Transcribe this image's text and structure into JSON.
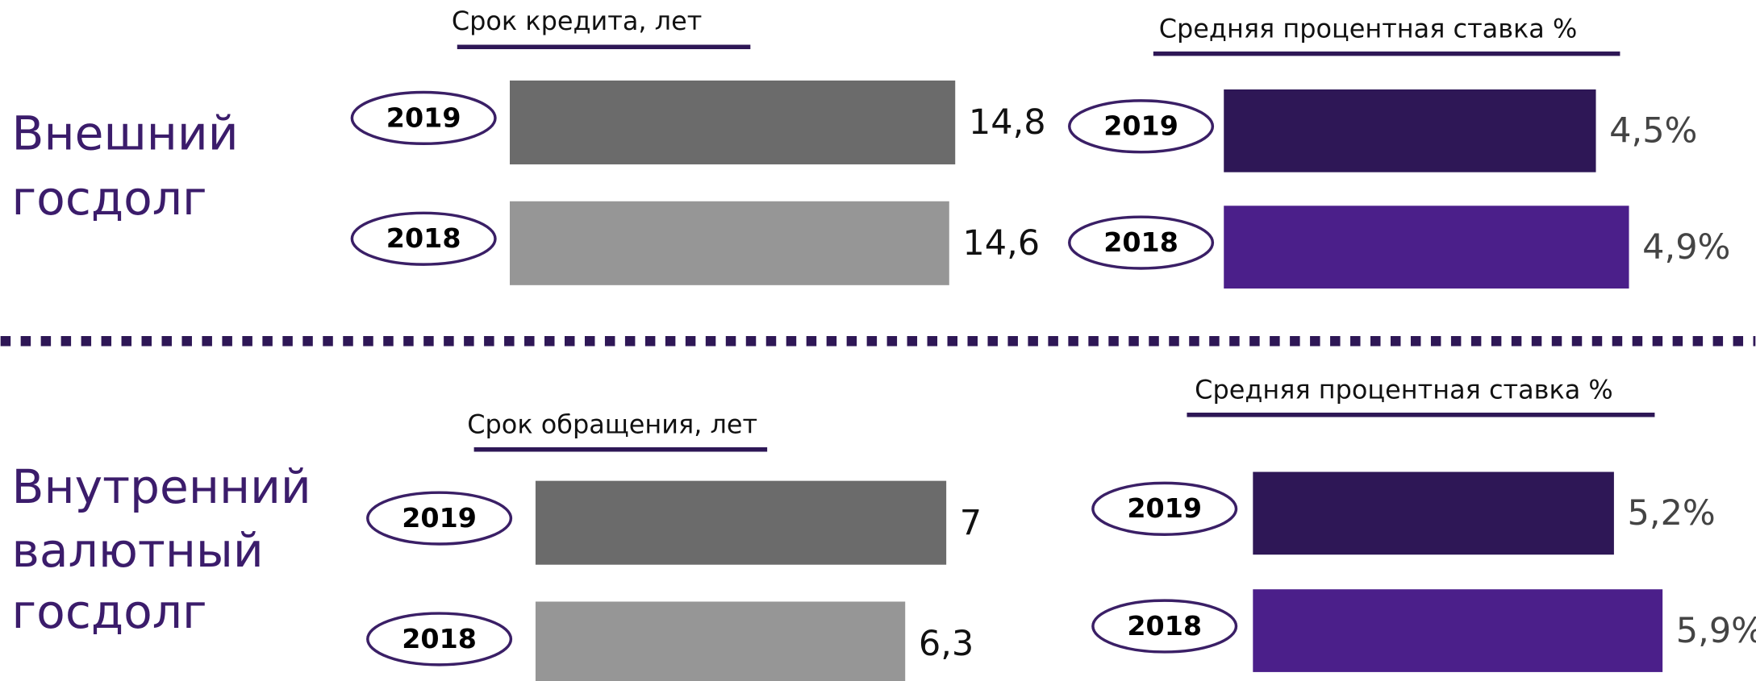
{
  "sections": [
    {
      "label": [
        "Внешний",
        "госдолг"
      ]
    },
    {
      "label": [
        "Внутренний",
        "валютный",
        "госдолг"
      ]
    }
  ],
  "chart_data": [
    {
      "type": "bar",
      "title": "Срок кредита, лет",
      "categories": [
        "2019",
        "2018"
      ],
      "values": [
        14.8,
        14.6
      ],
      "value_labels": [
        "14,8",
        "14,6"
      ],
      "colors": [
        "#6b6b6b",
        "#969696"
      ]
    },
    {
      "type": "bar",
      "title": "Средняя процентная ставка %",
      "categories": [
        "2019",
        "2018"
      ],
      "values": [
        4.5,
        4.9
      ],
      "value_labels": [
        "4,5%",
        "4,9%"
      ],
      "colors": [
        "#2e1756",
        "#4b1f8a"
      ]
    },
    {
      "type": "bar",
      "title": "Срок обращения, лет",
      "categories": [
        "2019",
        "2018"
      ],
      "values": [
        7,
        6.3
      ],
      "value_labels": [
        "7",
        "6,3"
      ],
      "colors": [
        "#6b6b6b",
        "#969696"
      ]
    },
    {
      "type": "bar",
      "title": "Средняя процентная ставка %",
      "categories": [
        "2019",
        "2018"
      ],
      "values": [
        5.2,
        5.9
      ],
      "value_labels": [
        "5,2%",
        "5,9%"
      ],
      "colors": [
        "#2e1756",
        "#4b1f8a"
      ]
    }
  ]
}
